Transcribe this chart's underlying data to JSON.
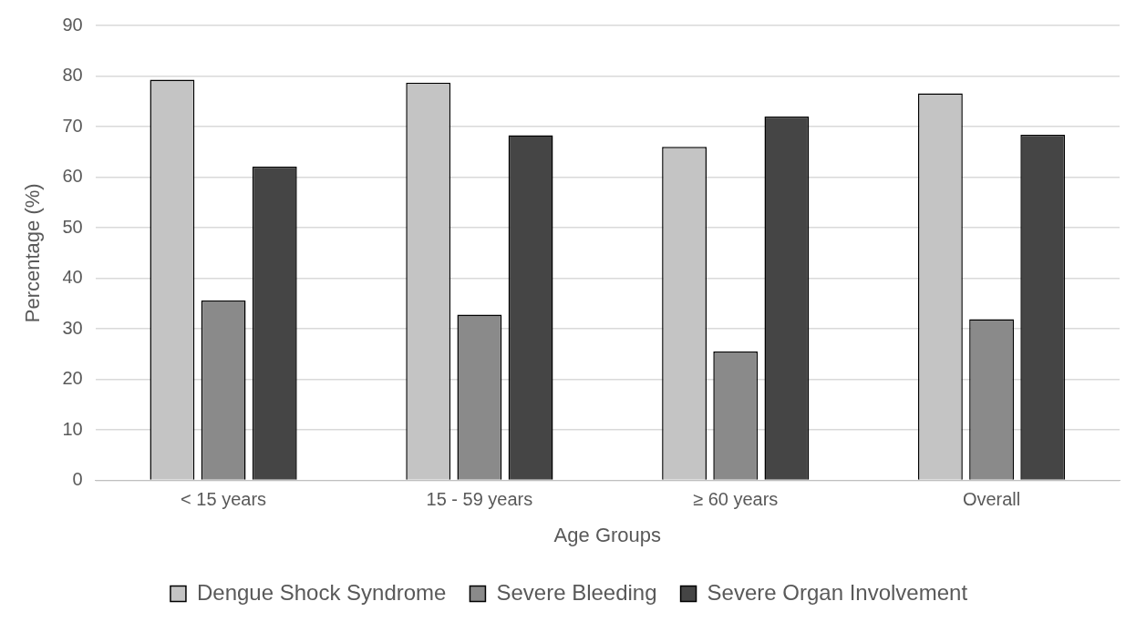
{
  "chart_data": {
    "type": "bar",
    "xlabel": "Age Groups",
    "ylabel": "Percentage (%)",
    "categories": [
      "< 15 years",
      "15 - 59 years",
      "≥ 60 years",
      "Overall"
    ],
    "series": [
      {
        "name": "Dengue Shock Syndrome",
        "color": "#c4c4c4",
        "values": [
          79.3,
          78.7,
          66.0,
          76.6
        ]
      },
      {
        "name": "Severe Bleeding",
        "color": "#8a8a8a",
        "values": [
          35.6,
          32.8,
          25.5,
          31.9
        ]
      },
      {
        "name": "Severe Organ Involvement",
        "color": "#454545",
        "values": [
          62.1,
          68.3,
          72.0,
          68.4
        ]
      }
    ],
    "ylim": [
      0,
      90
    ],
    "yticks": [
      0,
      10,
      20,
      30,
      40,
      50,
      60,
      70,
      80,
      90
    ],
    "grid": "y",
    "legend": "bottom"
  }
}
